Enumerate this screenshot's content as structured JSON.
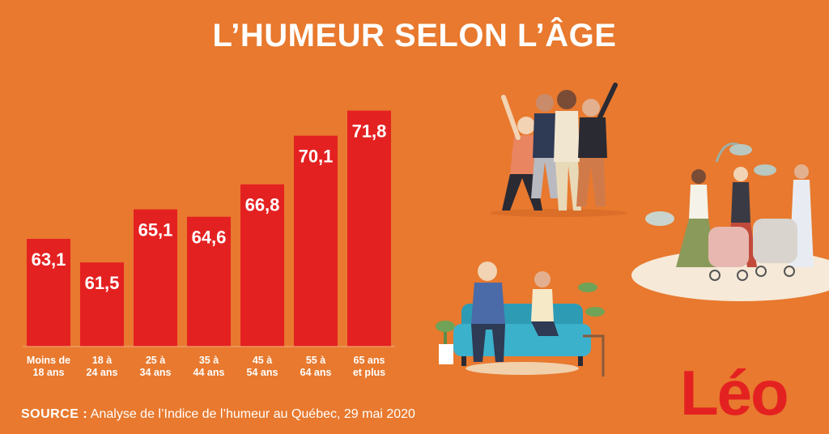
{
  "title": "L’HUMEUR SELON L’ÂGE",
  "source": {
    "label": "SOURCE :",
    "text": "Analyse de l’Indice de l’humeur au Québec, 29 mai 2020"
  },
  "logo": "Léo",
  "colors": {
    "background": "#E8792E",
    "bar": "#E42121",
    "text": "#FFFFFF"
  },
  "chart_data": {
    "type": "bar",
    "title": "L’HUMEUR SELON L’ÂGE",
    "categories": [
      [
        "Moins de",
        "18 ans"
      ],
      [
        "18 à",
        "24 ans"
      ],
      [
        "25 à",
        "34 ans"
      ],
      [
        "35 à",
        "44 ans"
      ],
      [
        "45 à",
        "54 ans"
      ],
      [
        "55 à",
        "64 ans"
      ],
      [
        "65 ans",
        "et plus"
      ]
    ],
    "values": [
      63.1,
      61.5,
      65.1,
      64.6,
      66.8,
      70.1,
      71.8
    ],
    "value_labels": [
      "63,1",
      "61,5",
      "65,1",
      "64,6",
      "66,8",
      "70,1",
      "71,8"
    ],
    "grid": false,
    "legend": "none"
  }
}
